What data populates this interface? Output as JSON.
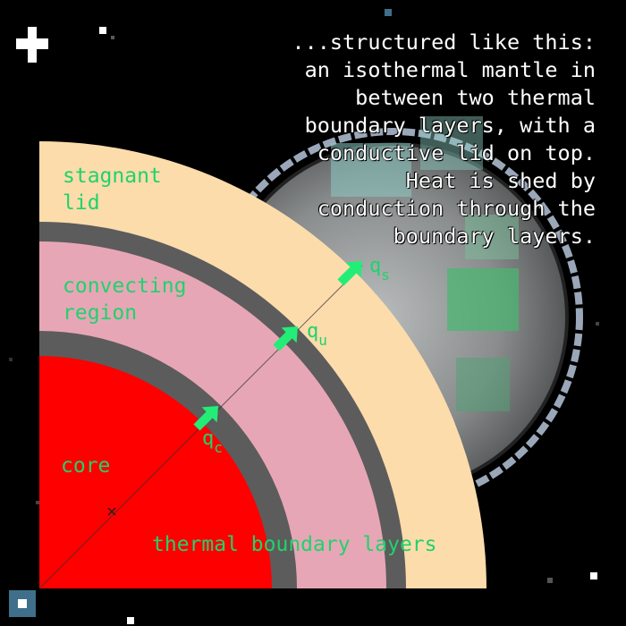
{
  "caption": "...structured like this:\nan isothermal mantle in\nbetween two thermal\nboundary layers, with a\nconductive lid on top.\nHeat is shed by\nconduction through the\nboundary layers.",
  "labels": {
    "stagnant_lid": "stagnant\nlid",
    "convecting_region": "convecting\nregion",
    "core": "core",
    "thermal_boundary_layers": "thermal boundary layers"
  },
  "fluxes": [
    {
      "symbol": "q",
      "subscript": "c"
    },
    {
      "symbol": "q",
      "subscript": "u"
    },
    {
      "symbol": "q",
      "subscript": "s"
    }
  ],
  "colors": {
    "lid": "#fddcab",
    "convecting": "#e7a6b6",
    "core": "#ff0000",
    "boundary_layer": "#5c5c5c",
    "label_green": "#1fd36c",
    "arrow_green": "#22ee77"
  }
}
